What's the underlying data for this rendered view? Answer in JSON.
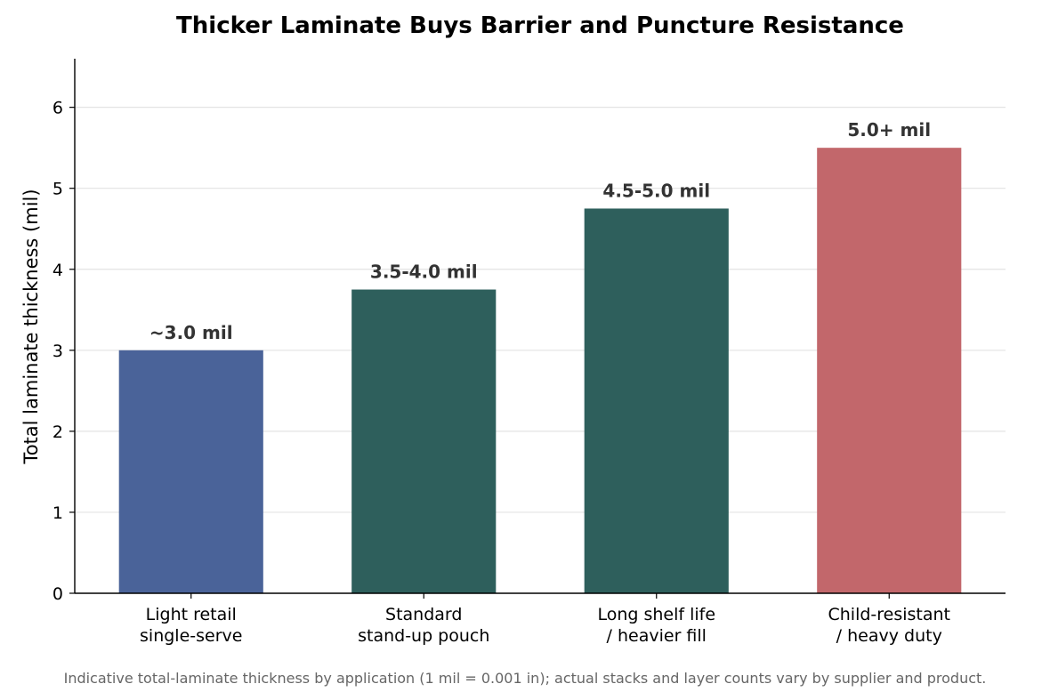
{
  "chart_data": {
    "type": "bar",
    "title": "Thicker Laminate Buys Barrier and Puncture Resistance",
    "ylabel": "Total laminate thickness (mil)",
    "xlabel": "",
    "ylim": [
      0,
      6.6
    ],
    "yticks": [
      0,
      1,
      2,
      3,
      4,
      5,
      6
    ],
    "grid": "horizontal",
    "categories": [
      [
        "Light retail",
        "single-serve"
      ],
      [
        "Standard",
        "stand-up pouch"
      ],
      [
        "Long shelf life",
        "/ heavier fill"
      ],
      [
        "Child-resistant",
        "/ heavy duty"
      ]
    ],
    "values": [
      3.0,
      3.75,
      4.75,
      5.5
    ],
    "data_labels": [
      "~3.0 mil",
      "3.5-4.0 mil",
      "4.5-5.0 mil",
      "5.0+ mil"
    ],
    "colors": [
      "#4a6399",
      "#2e5f5c",
      "#2e5f5c",
      "#c2676b"
    ],
    "caption": "Indicative total-laminate thickness by application (1 mil = 0.001 in); actual stacks and layer counts vary by supplier and product."
  }
}
